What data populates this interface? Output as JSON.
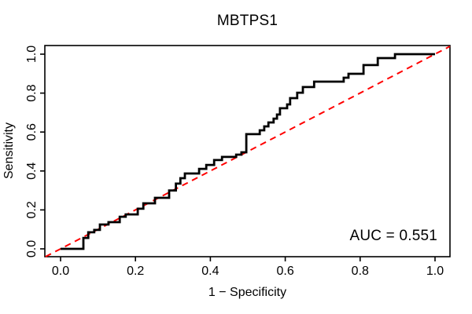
{
  "chart_data": {
    "type": "line",
    "variant": "roc-step-curve",
    "title": "MBTPS1",
    "xlabel": "1 − Specificity",
    "ylabel": "Sensitivity",
    "annotation": "AUC = 0.551",
    "auc_value": 0.551,
    "xlim": [
      0,
      1
    ],
    "ylim": [
      0,
      1
    ],
    "x_ticks": [
      "0.0",
      "0.2",
      "0.4",
      "0.6",
      "0.8",
      "1.0"
    ],
    "y_ticks": [
      "0.0",
      "0.2",
      "0.4",
      "0.6",
      "0.8",
      "1.0"
    ],
    "grid": "off",
    "legend": "none",
    "colors": {
      "roc_curve": "#000000",
      "reference_line": "#FF0000",
      "axis": "#000000",
      "background": "#FFFFFF"
    },
    "series": [
      {
        "name": "ROC curve",
        "style": "solid-step",
        "color": "#000000",
        "points": [
          [
            0,
            0
          ],
          [
            0.061,
            0
          ],
          [
            0.061,
            0.056
          ],
          [
            0.074,
            0.056
          ],
          [
            0.074,
            0.085
          ],
          [
            0.09,
            0.085
          ],
          [
            0.09,
            0.097
          ],
          [
            0.105,
            0.097
          ],
          [
            0.105,
            0.125
          ],
          [
            0.128,
            0.125
          ],
          [
            0.128,
            0.137
          ],
          [
            0.158,
            0.137
          ],
          [
            0.158,
            0.165
          ],
          [
            0.174,
            0.165
          ],
          [
            0.174,
            0.177
          ],
          [
            0.206,
            0.177
          ],
          [
            0.206,
            0.206
          ],
          [
            0.221,
            0.206
          ],
          [
            0.221,
            0.234
          ],
          [
            0.252,
            0.234
          ],
          [
            0.252,
            0.262
          ],
          [
            0.29,
            0.262
          ],
          [
            0.29,
            0.3
          ],
          [
            0.308,
            0.3
          ],
          [
            0.308,
            0.335
          ],
          [
            0.32,
            0.335
          ],
          [
            0.32,
            0.363
          ],
          [
            0.332,
            0.363
          ],
          [
            0.332,
            0.387
          ],
          [
            0.37,
            0.387
          ],
          [
            0.37,
            0.411
          ],
          [
            0.389,
            0.411
          ],
          [
            0.389,
            0.431
          ],
          [
            0.41,
            0.431
          ],
          [
            0.41,
            0.456
          ],
          [
            0.431,
            0.456
          ],
          [
            0.431,
            0.472
          ],
          [
            0.469,
            0.472
          ],
          [
            0.469,
            0.484
          ],
          [
            0.483,
            0.484
          ],
          [
            0.483,
            0.496
          ],
          [
            0.496,
            0.496
          ],
          [
            0.496,
            0.589
          ],
          [
            0.532,
            0.589
          ],
          [
            0.532,
            0.609
          ],
          [
            0.544,
            0.609
          ],
          [
            0.544,
            0.629
          ],
          [
            0.555,
            0.629
          ],
          [
            0.555,
            0.649
          ],
          [
            0.569,
            0.649
          ],
          [
            0.569,
            0.669
          ],
          [
            0.578,
            0.669
          ],
          [
            0.578,
            0.69
          ],
          [
            0.586,
            0.69
          ],
          [
            0.586,
            0.722
          ],
          [
            0.605,
            0.722
          ],
          [
            0.605,
            0.742
          ],
          [
            0.613,
            0.742
          ],
          [
            0.613,
            0.774
          ],
          [
            0.632,
            0.774
          ],
          [
            0.632,
            0.802
          ],
          [
            0.647,
            0.802
          ],
          [
            0.647,
            0.831
          ],
          [
            0.677,
            0.831
          ],
          [
            0.677,
            0.859
          ],
          [
            0.756,
            0.859
          ],
          [
            0.756,
            0.879
          ],
          [
            0.769,
            0.879
          ],
          [
            0.769,
            0.899
          ],
          [
            0.809,
            0.899
          ],
          [
            0.809,
            0.944
          ],
          [
            0.847,
            0.944
          ],
          [
            0.847,
            0.98
          ],
          [
            0.893,
            0.98
          ],
          [
            0.893,
            1
          ],
          [
            1,
            1
          ]
        ]
      },
      {
        "name": "Chance diagonal",
        "style": "dashed",
        "color": "#FF0000",
        "points": [
          [
            0,
            0
          ],
          [
            1,
            1
          ]
        ]
      }
    ]
  }
}
